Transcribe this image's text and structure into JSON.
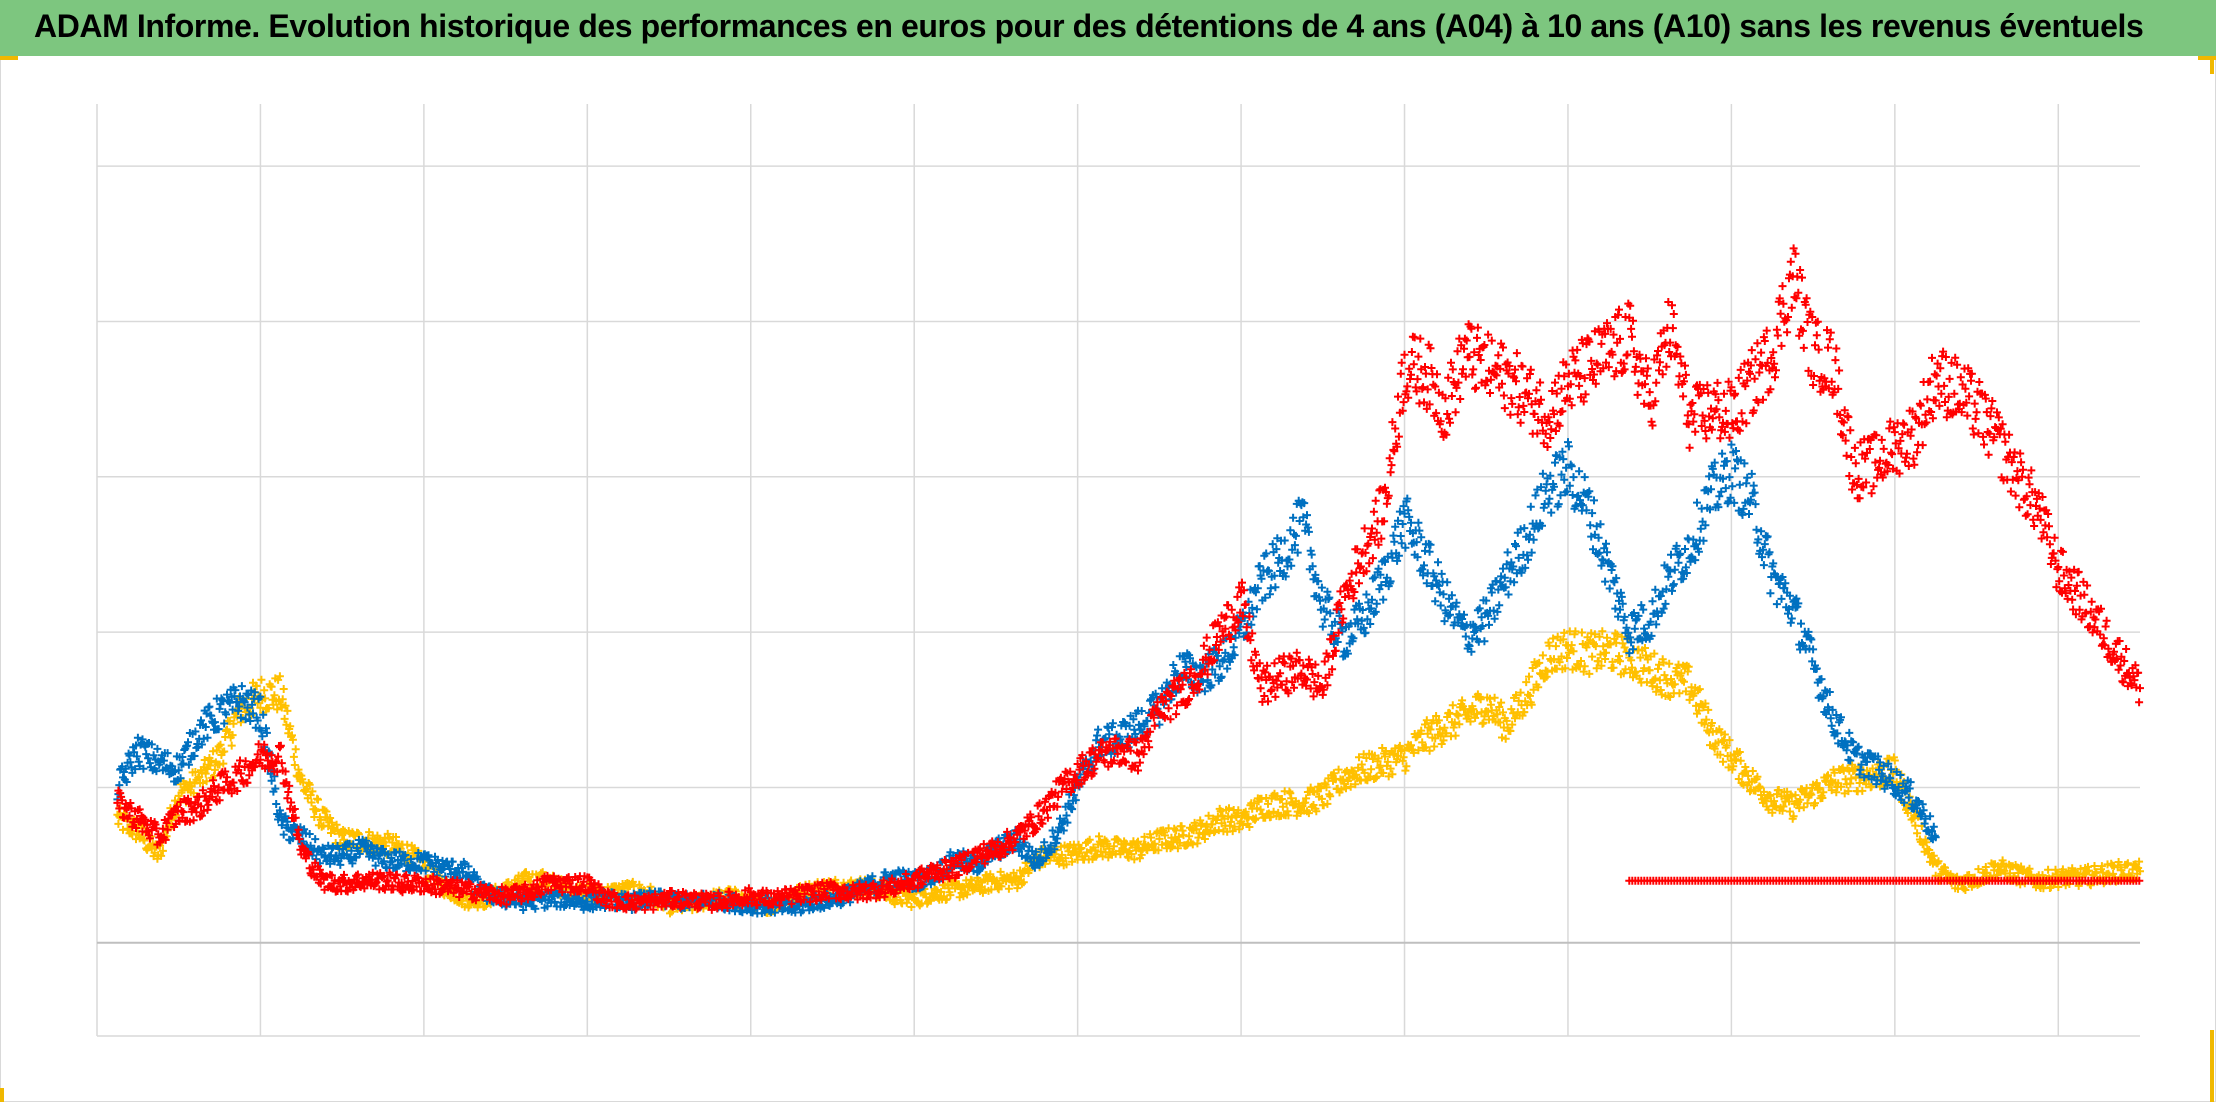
{
  "header": {
    "title": "ADAM Informe. Evolution historique des performances en euros pour des détentions de 4 ans (A04) à 10 ans (A10) sans les revenus éventuels"
  },
  "colors": {
    "title_bar": "#7dc67f",
    "series_yellow": "#ffc000",
    "series_blue": "#0070c0",
    "series_red": "#ff0000",
    "grid": "#d9d9d9",
    "zero_line": "#bfbfbf",
    "corner_marks": "#f0b800"
  },
  "chart_data": {
    "type": "scatter",
    "marker": "plus",
    "grid": true,
    "legend": "none",
    "title": "ADAM Informe. Evolution historique des performances en euros pour des détentions de 4 ans (A04) à 10 ans (A10) sans les revenus éventuels",
    "xlabel": "",
    "ylabel": "",
    "xlim": [
      0,
      100
    ],
    "ylim": [
      -30,
      270
    ],
    "x_gridlines": [
      0,
      8,
      16,
      24,
      32,
      40,
      48,
      56,
      64,
      72,
      80,
      88,
      96
    ],
    "y_gridlines": [
      -30,
      0,
      50,
      100,
      150,
      200,
      250
    ],
    "series": [
      {
        "color": "#ffc000",
        "x": [
          1,
          2,
          3,
          4,
          5,
          6,
          7,
          8,
          9,
          10,
          11,
          12,
          13,
          14,
          15,
          16,
          17,
          18,
          19,
          20,
          21,
          22,
          23,
          24,
          25,
          26,
          27,
          28,
          29,
          30,
          31,
          32,
          33,
          34,
          35,
          36,
          37,
          38,
          39,
          40,
          41,
          42,
          43,
          44,
          45,
          46,
          47,
          48,
          49,
          50,
          51,
          52,
          53,
          54,
          55,
          56,
          57,
          58,
          59,
          60,
          61,
          62,
          63,
          64,
          65,
          66,
          67,
          68,
          69,
          70,
          71,
          72,
          73,
          74,
          75,
          76,
          77,
          78,
          79,
          80,
          81,
          82,
          83,
          84,
          85,
          86,
          87,
          88,
          89,
          90,
          91,
          92,
          93,
          94,
          95,
          96,
          97,
          98,
          99,
          100
        ],
        "values": [
          40,
          36,
          28,
          48,
          52,
          60,
          75,
          80,
          80,
          52,
          40,
          33,
          33,
          32,
          30,
          25,
          18,
          14,
          14,
          17,
          20,
          20,
          17,
          16,
          16,
          17,
          16,
          12,
          12,
          14,
          15,
          13,
          12,
          15,
          17,
          18,
          18,
          18,
          15,
          14,
          16,
          17,
          18,
          20,
          20,
          27,
          28,
          29,
          31,
          30,
          30,
          33,
          34,
          36,
          40,
          39,
          44,
          45,
          45,
          47,
          53,
          56,
          58,
          60,
          66,
          70,
          73,
          77,
          70,
          80,
          92,
          95,
          93,
          94,
          92,
          88,
          85,
          83,
          68,
          60,
          52,
          46,
          44,
          48,
          52,
          53,
          54,
          55,
          40,
          24,
          19,
          21,
          24,
          22,
          20,
          21,
          21,
          22,
          23,
          23
        ]
      },
      {
        "color": "#0070c0",
        "x": [
          1,
          2,
          3,
          4,
          5,
          6,
          7,
          8,
          9,
          10,
          11,
          12,
          13,
          14,
          15,
          16,
          17,
          18,
          19,
          20,
          21,
          22,
          23,
          24,
          25,
          26,
          27,
          28,
          29,
          30,
          31,
          32,
          33,
          34,
          35,
          36,
          37,
          38,
          39,
          40,
          41,
          42,
          43,
          44,
          45,
          46,
          47,
          48,
          49,
          50,
          51,
          52,
          53,
          54,
          55,
          56,
          57,
          58,
          59,
          60,
          61,
          62,
          63,
          64,
          65,
          66,
          67,
          68,
          69,
          70,
          71,
          72,
          73,
          74,
          75,
          76,
          77,
          78,
          79,
          80,
          81,
          82,
          83,
          84,
          85,
          86,
          87,
          88,
          89,
          90
        ],
        "values": [
          50,
          62,
          58,
          56,
          68,
          74,
          78,
          74,
          38,
          34,
          28,
          28,
          30,
          27,
          26,
          26,
          24,
          23,
          16,
          14,
          13,
          14,
          14,
          13,
          14,
          13,
          14,
          14,
          13,
          14,
          13,
          12,
          12,
          11,
          13,
          14,
          16,
          19,
          21,
          20,
          22,
          27,
          25,
          30,
          33,
          26,
          35,
          50,
          64,
          66,
          70,
          76,
          88,
          86,
          90,
          100,
          116,
          124,
          136,
          108,
          98,
          104,
          118,
          136,
          124,
          110,
          99,
          104,
          118,
          130,
          146,
          152,
          140,
          120,
          100,
          104,
          118,
          128,
          144,
          152,
          142,
          118,
          108,
          90,
          72,
          60,
          56,
          52,
          46,
          34
        ]
      },
      {
        "color": "#ff0000",
        "x": [
          1,
          2,
          3,
          4,
          5,
          6,
          7,
          8,
          9,
          10,
          11,
          12,
          13,
          14,
          15,
          16,
          17,
          18,
          19,
          20,
          21,
          22,
          23,
          24,
          25,
          26,
          27,
          28,
          29,
          30,
          31,
          32,
          33,
          34,
          35,
          36,
          37,
          38,
          39,
          40,
          41,
          42,
          43,
          44,
          45,
          46,
          47,
          48,
          49,
          50,
          51,
          52,
          53,
          54,
          55,
          56,
          57,
          58,
          59,
          60,
          61,
          62,
          63,
          64,
          65,
          66,
          67,
          68,
          69,
          70,
          71,
          72,
          73,
          74,
          75,
          76,
          77,
          78,
          79,
          80,
          81,
          82,
          83,
          84,
          85,
          86,
          87,
          88,
          89,
          90,
          91,
          92,
          93,
          94,
          95,
          96,
          97,
          98,
          99,
          100
        ],
        "values": [
          45,
          40,
          34,
          42,
          44,
          50,
          54,
          60,
          60,
          30,
          20,
          19,
          20,
          20,
          19,
          19,
          18,
          17,
          16,
          15,
          16,
          19,
          19,
          19,
          14,
          13,
          13,
          14,
          14,
          13,
          14,
          15,
          14,
          15,
          16,
          17,
          16,
          17,
          18,
          20,
          23,
          24,
          28,
          30,
          34,
          40,
          48,
          55,
          60,
          62,
          60,
          75,
          80,
          88,
          100,
          110,
          82,
          86,
          88,
          82,
          110,
          126,
          140,
          185,
          184,
          172,
          190,
          185,
          182,
          176,
          170,
          180,
          185,
          190,
          195,
          174,
          198,
          168,
          172,
          170,
          180,
          190,
          215,
          190,
          186,
          152,
          154,
          160,
          164,
          182,
          178,
          172,
          162,
          150,
          140,
          120,
          112,
          102,
          92,
          82
        ]
      },
      {
        "color": "#ff0000",
        "x": [
          75,
          100
        ],
        "values": [
          20,
          20
        ]
      }
    ]
  }
}
